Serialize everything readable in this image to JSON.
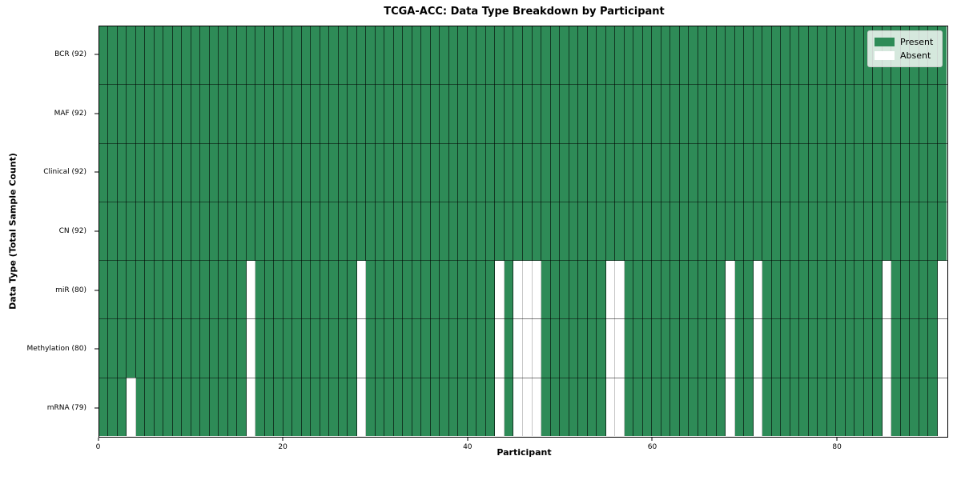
{
  "chart_data": {
    "type": "heatmap",
    "title": "TCGA-ACC: Data Type Breakdown by Participant",
    "xlabel": "Participant",
    "ylabel": "Data Type (Total Sample Count)",
    "n_participants": 92,
    "x_ticks": [
      0,
      20,
      40,
      60,
      80
    ],
    "x_range": [
      0,
      92
    ],
    "grid": true,
    "rows": [
      {
        "label": "BCR (92)",
        "data_type": "BCR",
        "present_count": 92,
        "absent_participants": []
      },
      {
        "label": "MAF (92)",
        "data_type": "MAF",
        "present_count": 92,
        "absent_participants": []
      },
      {
        "label": "Clinical (92)",
        "data_type": "Clinical",
        "present_count": 92,
        "absent_participants": []
      },
      {
        "label": "CN (92)",
        "data_type": "CN",
        "present_count": 92,
        "absent_participants": []
      },
      {
        "label": "miR (80)",
        "data_type": "miR",
        "present_count": 80,
        "absent_participants": [
          16,
          28,
          43,
          45,
          46,
          47,
          55,
          56,
          68,
          71,
          85,
          91
        ]
      },
      {
        "label": "Methylation (80)",
        "data_type": "Methylation",
        "present_count": 80,
        "absent_participants": [
          16,
          28,
          43,
          45,
          46,
          47,
          55,
          56,
          68,
          71,
          85,
          91
        ]
      },
      {
        "label": "mRNA (79)",
        "data_type": "mRNA",
        "present_count": 79,
        "absent_participants": [
          3,
          16,
          28,
          43,
          45,
          46,
          47,
          55,
          56,
          68,
          71,
          85,
          91
        ]
      }
    ],
    "legend": {
      "position": "upper right",
      "entries": [
        {
          "label": "Present",
          "color": "#2e8b57"
        },
        {
          "label": "Absent",
          "color": "#ffffff"
        }
      ]
    },
    "colors": {
      "present": "#2e8b57",
      "absent": "#ffffff",
      "grid_on_present": "rgba(0,0,0,0.6)",
      "grid_on_absent": "rgba(0,0,0,0.22)",
      "row_divider": "rgba(0,0,0,0.5)",
      "frame": "#000000"
    }
  }
}
